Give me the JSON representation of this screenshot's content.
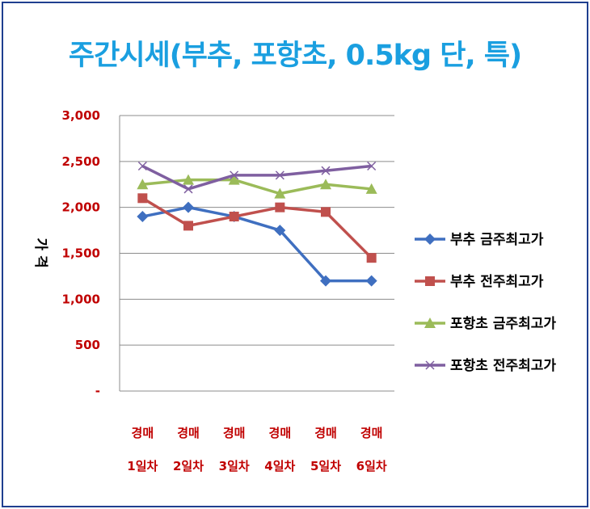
{
  "chart_data": {
    "type": "line",
    "title": "주간시세(부추, 포항초, 0.5kg 단, 특)",
    "xlabel": "",
    "ylabel": "가 격",
    "categories": [
      [
        "경매",
        "1일차"
      ],
      [
        "경매",
        "2일차"
      ],
      [
        "경매",
        "3일차"
      ],
      [
        "경매",
        "4일차"
      ],
      [
        "경매",
        "5일차"
      ],
      [
        "경매",
        "6일차"
      ]
    ],
    "yticks": [
      "-",
      "500",
      "1,000",
      "1,500",
      "2,000",
      "2,500",
      "3,000"
    ],
    "ylim": [
      0,
      3000
    ],
    "grid": "horizontal",
    "legend_position": "right",
    "series": [
      {
        "name": "부추 금주최고가",
        "color": "#3f6fc0",
        "marker": "diamond",
        "values": [
          1900,
          2000,
          1900,
          1750,
          1200,
          1200
        ]
      },
      {
        "name": "부추 전주최고가",
        "color": "#c0504d",
        "marker": "square",
        "values": [
          2100,
          1800,
          1900,
          2000,
          1950,
          1450
        ]
      },
      {
        "name": "포항초 금주최고가",
        "color": "#9bbb59",
        "marker": "triangle",
        "values": [
          2250,
          2300,
          2300,
          2150,
          2250,
          2200
        ]
      },
      {
        "name": "포항초 전주최고가",
        "color": "#7f5fa0",
        "marker": "x",
        "values": [
          2450,
          2200,
          2350,
          2350,
          2400,
          2450
        ]
      }
    ]
  }
}
